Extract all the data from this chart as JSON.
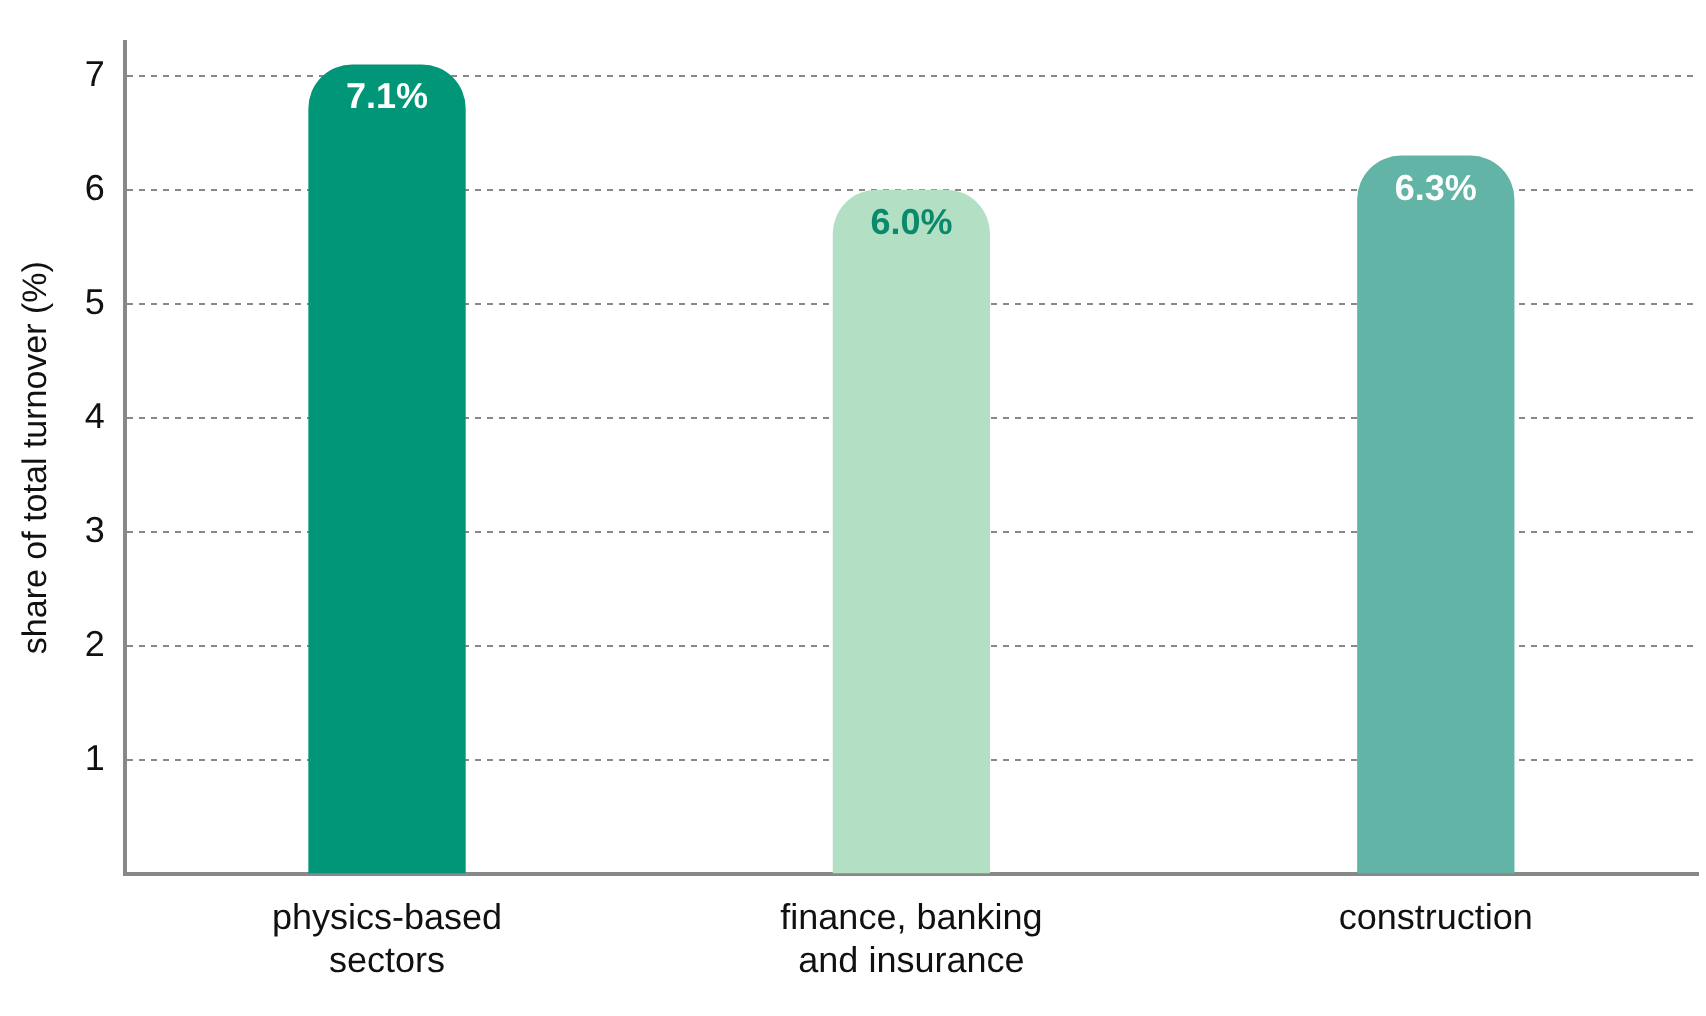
{
  "chart_data": {
    "type": "bar",
    "ylabel": "share of total turnover (%)",
    "categories": [
      "physics-based sectors",
      "finance, banking and insurance",
      "construction"
    ],
    "values": [
      7.1,
      6.0,
      6.3
    ],
    "colors": [
      "#009677",
      "#b3dfc4",
      "#62b5a6"
    ],
    "value_labels": [
      "7.1%",
      "6.0%",
      "6.3%"
    ],
    "ylim": [
      0,
      7.3
    ],
    "yticks": [
      1,
      2,
      3,
      4,
      5,
      6,
      7
    ],
    "grid": "y"
  }
}
